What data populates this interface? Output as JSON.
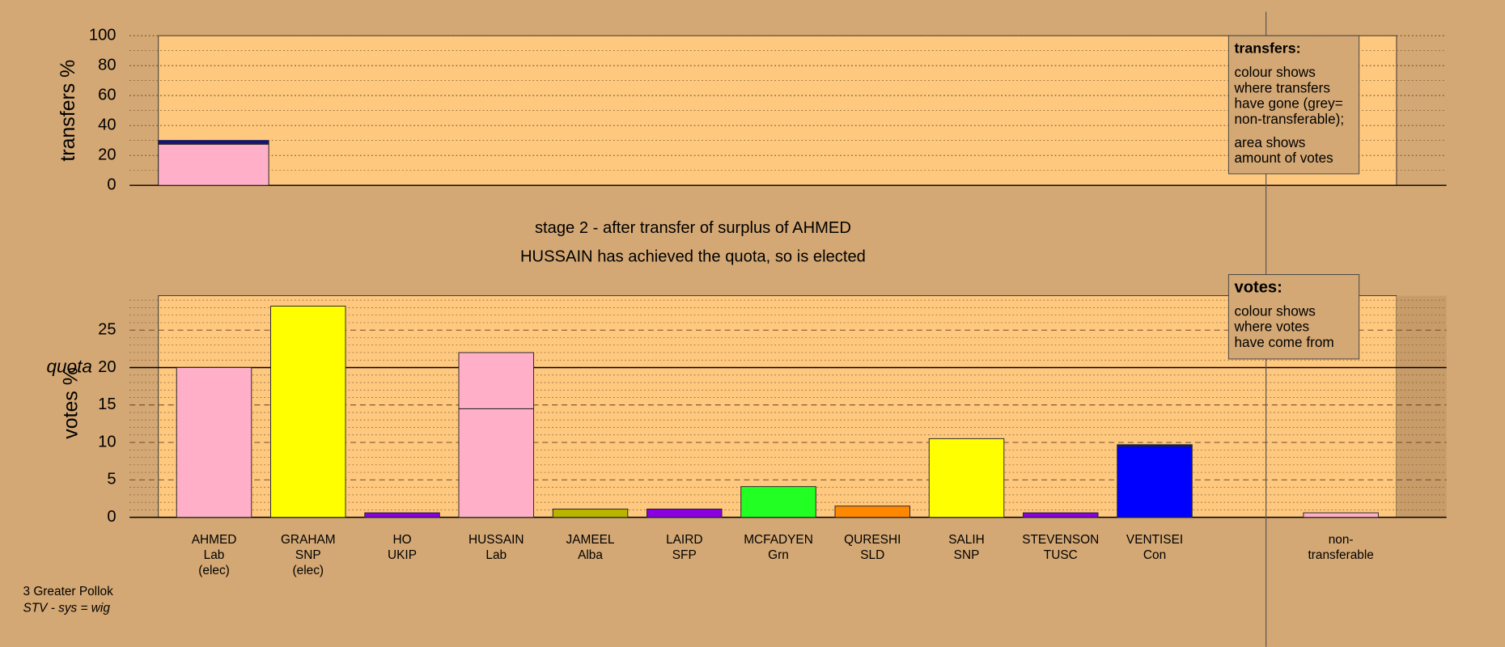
{
  "chart_data": [
    {
      "type": "stacked-bar",
      "ylabel": "transfers %",
      "ylim": [
        0,
        100
      ],
      "yticks": [
        0,
        20,
        40,
        60,
        80,
        100
      ],
      "minor_yticks": [
        10,
        30,
        50,
        70,
        90
      ],
      "grid": true,
      "segments": [
        {
          "color": "#ffb0c8",
          "value": 27.5
        },
        {
          "color": "#14148c",
          "value": 1
        },
        {
          "color": "#0000ff",
          "value": 1.5
        }
      ],
      "note": {
        "title": "transfers:",
        "paragraphs": [
          [
            "colour shows",
            "where transfers",
            "have gone (grey=",
            "non-transferable);"
          ],
          [
            "area shows",
            "amount of votes"
          ]
        ]
      }
    },
    {
      "type": "stacked-bar",
      "title": "stage 2 - after transfer of surplus of AHMED",
      "subtitle": "HUSSAIN has achieved the quota, so is elected",
      "ylabel": "votes %",
      "ylim": [
        0,
        29.6
      ],
      "yticks": [
        0,
        5,
        10,
        15,
        20,
        25
      ],
      "minor_yticks": [
        1,
        2,
        3,
        4,
        6,
        7,
        8,
        9,
        11,
        12,
        13,
        14,
        16,
        17,
        18,
        19,
        21,
        22,
        23,
        24,
        26,
        27,
        28,
        29
      ],
      "grid": true,
      "quota": {
        "value": 20,
        "label": "quota"
      },
      "categories": [
        "AHMED",
        "GRAHAM",
        "HO",
        "HUSSAIN",
        "JAMEEL",
        "LAIRD",
        "MCFADYEN",
        "QURESHI",
        "SALIH",
        "STEVENSON",
        "VENTISEI"
      ],
      "parties": [
        "Lab",
        "SNP",
        "UKIP",
        "Lab",
        "Alba",
        "SFP",
        "Grn",
        "SLD",
        "SNP",
        "TUSC",
        "Con"
      ],
      "status": [
        "(elec)",
        "(elec)",
        null,
        null,
        null,
        null,
        null,
        null,
        null,
        null,
        null
      ],
      "bars": [
        [
          {
            "color": "#ffb0c8",
            "value": 20
          }
        ],
        [
          {
            "color": "#ffff00",
            "value": 28.2
          }
        ],
        [
          {
            "color": "#8a00e0",
            "value": 0.6
          }
        ],
        [
          {
            "color": "#ffb0c8",
            "value": 14.5
          },
          {
            "color": "#ffb0c8",
            "value": 7.5
          }
        ],
        [
          {
            "color": "#b8b400",
            "value": 1.1
          }
        ],
        [
          {
            "color": "#8a00e0",
            "value": 1.1
          }
        ],
        [
          {
            "color": "#22ff22",
            "value": 4.1
          }
        ],
        [
          {
            "color": "#ff8800",
            "value": 1.5
          }
        ],
        [
          {
            "color": "#ffff00",
            "value": 10.5
          }
        ],
        [
          {
            "color": "#8a00e0",
            "value": 0.6
          }
        ],
        [
          {
            "color": "#0000ff",
            "value": 9.5
          },
          {
            "color": "#14148c",
            "value": 0.2
          }
        ]
      ],
      "nontransferable": {
        "label": [
          "non-",
          "transferable"
        ],
        "segments": [
          {
            "color": "#ffb0c8",
            "value": 0.6
          }
        ]
      },
      "note": {
        "title": "votes:",
        "paragraphs": [
          [
            "colour shows",
            "where votes",
            "have come from"
          ]
        ]
      }
    }
  ],
  "footer": {
    "ward": "3 Greater Pollok",
    "system": "STV - sys = wig"
  }
}
